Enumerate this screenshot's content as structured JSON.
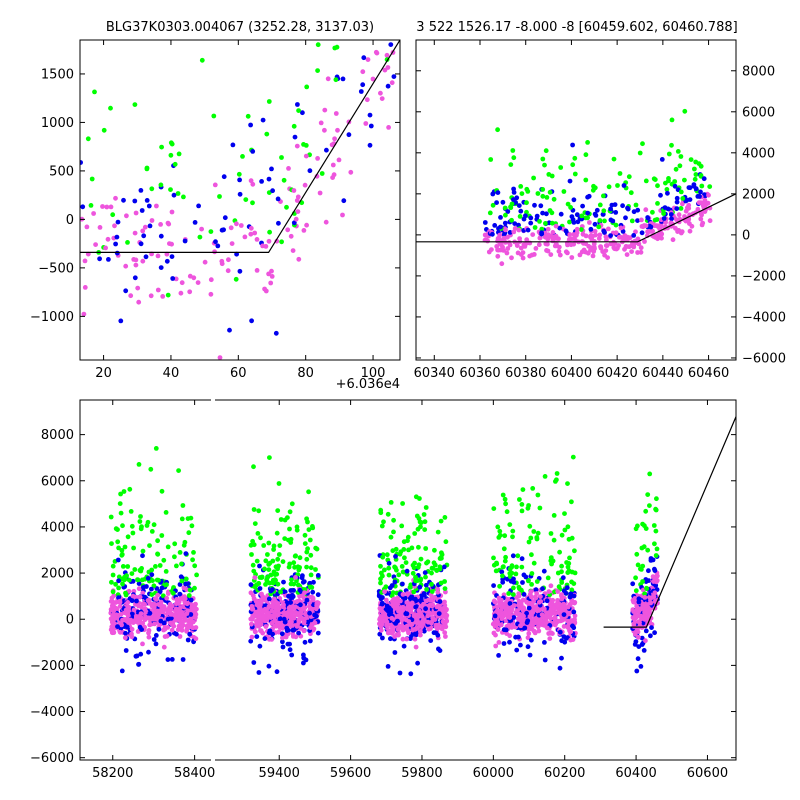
{
  "colors": {
    "green": "#00ff00",
    "blue": "#0000ee",
    "magenta": "#ee55dd",
    "line": "#000000"
  },
  "chart_data": [
    {
      "type": "scatter",
      "title": "BLG37K0303.004067 (3252.28, 3137.03)",
      "xlabel": "",
      "ylabel": "",
      "x_offset_label": "+6.036e4",
      "xlim": [
        13,
        108
      ],
      "ylim": [
        -1450,
        1850
      ],
      "x_ticks": [
        20,
        40,
        60,
        80,
        100
      ],
      "y_ticks": [
        -1000,
        -500,
        0,
        500,
        1000,
        1500
      ],
      "x_tick_labels": [
        "20",
        "40",
        "60",
        "80",
        "100"
      ],
      "y_tick_labels": [
        "−1000",
        "−500",
        "0",
        "500",
        "1000",
        "1500"
      ],
      "series_colors": [
        "green",
        "blue",
        "magenta"
      ],
      "model_line": {
        "x": [
          13,
          69,
          108
        ],
        "y": [
          -340,
          -340,
          1850
        ]
      }
    },
    {
      "type": "scatter",
      "title": "3 522 1526.17 -8.000 -8 [60459.602, 60460.788]",
      "xlabel": "",
      "ylabel": "",
      "xlim": [
        60332,
        60472
      ],
      "ylim": [
        -6100,
        9500
      ],
      "y_axis_side": "right",
      "x_ticks": [
        60340,
        60360,
        60380,
        60400,
        60420,
        60440,
        60460
      ],
      "y_ticks": [
        -6000,
        -4000,
        -2000,
        0,
        2000,
        4000,
        6000,
        8000
      ],
      "x_tick_labels": [
        "60340",
        "60360",
        "60380",
        "60400",
        "60420",
        "60440",
        "60460"
      ],
      "y_tick_labels": [
        "−6000",
        "−4000",
        "−2000",
        "0",
        "2000",
        "4000",
        "6000",
        "8000"
      ],
      "series_colors": [
        "green",
        "blue",
        "magenta"
      ],
      "model_line": {
        "x": [
          60332,
          60429,
          60472
        ],
        "y": [
          -340,
          -340,
          2000
        ]
      }
    },
    {
      "type": "scatter",
      "title": "",
      "xlabel": "",
      "ylabel": "",
      "xlim": [
        58120,
        60680
      ],
      "ylim": [
        -6100,
        9500
      ],
      "x_ticks": [
        58200,
        58400,
        59400,
        59600,
        59800,
        60000,
        60200,
        60400,
        60600
      ],
      "y_ticks": [
        -6000,
        -4000,
        -2000,
        0,
        2000,
        4000,
        6000,
        8000
      ],
      "x_tick_labels": [
        "58200",
        "58400",
        "59400",
        "59600",
        "59800",
        "60000",
        "60200",
        "60400",
        "60600"
      ],
      "y_tick_labels": [
        "−6000",
        "−4000",
        "−2000",
        "0",
        "2000",
        "4000",
        "6000",
        "8000"
      ],
      "axis_breaks_x": [
        [
          58440,
          59220
        ]
      ],
      "seasons": [
        [
          58195,
          58405
        ],
        [
          59320,
          59510
        ],
        [
          59680,
          59870
        ],
        [
          60000,
          60230
        ],
        [
          60390,
          60460
        ]
      ],
      "series_colors": [
        "green",
        "blue",
        "magenta"
      ],
      "model_line": {
        "x": [
          60309,
          60429,
          60700
        ],
        "y": [
          -340,
          -340,
          9500
        ]
      }
    }
  ]
}
